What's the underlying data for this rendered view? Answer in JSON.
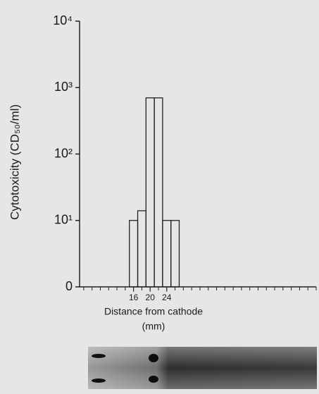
{
  "chart_data": {
    "type": "histogram",
    "log_y": true,
    "ylabel": "Cytotoxicity (CD₅₀/ml)",
    "xlabel": [
      "Distance from cathode",
      "(mm)"
    ],
    "bins": [
      15,
      17,
      19,
      21,
      23,
      25,
      27
    ],
    "counts": [
      10,
      14,
      700,
      700,
      10,
      10
    ],
    "xlim": [
      3,
      60
    ],
    "xticks": [
      16,
      20,
      24
    ],
    "xminor_ticks": [
      4,
      6,
      8,
      10,
      12,
      14,
      16,
      18,
      20,
      22,
      24,
      26,
      28,
      30,
      32,
      34,
      36,
      38,
      40,
      42,
      44,
      46,
      48,
      50,
      52,
      54,
      56,
      58,
      60
    ],
    "ylim": [
      1,
      10000
    ],
    "yticks": [
      {
        "value": 1,
        "label": "0"
      },
      {
        "value": 10,
        "label": "10¹"
      },
      {
        "value": 100,
        "label": "10²"
      },
      {
        "value": 1000,
        "label": "10³"
      },
      {
        "value": 10000,
        "label": "10⁴"
      }
    ],
    "color": "#222222"
  }
}
